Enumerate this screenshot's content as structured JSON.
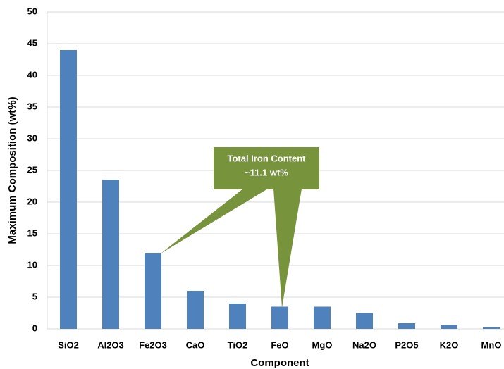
{
  "chart_data": {
    "type": "bar",
    "x_label": "Component",
    "y_label": "Maximum Composition (wt%)",
    "annotation": [
      "Total Iron Content",
      "~11.1 wt%"
    ],
    "categories": [
      "SiO2",
      "Al2O3",
      "Fe2O3",
      "CaO",
      "TiO2",
      "FeO",
      "MgO",
      "Na2O",
      "P2O5",
      "K2O",
      "MnO"
    ],
    "values": [
      44,
      23.5,
      12,
      6,
      4,
      3.5,
      3.5,
      2.5,
      0.9,
      0.6,
      0.3
    ],
    "color": "#4f81bd",
    "ylim": [
      0,
      50
    ],
    "yticks": [
      0,
      5,
      10,
      15,
      20,
      25,
      30,
      35,
      40,
      45,
      50
    ],
    "grid": true
  }
}
